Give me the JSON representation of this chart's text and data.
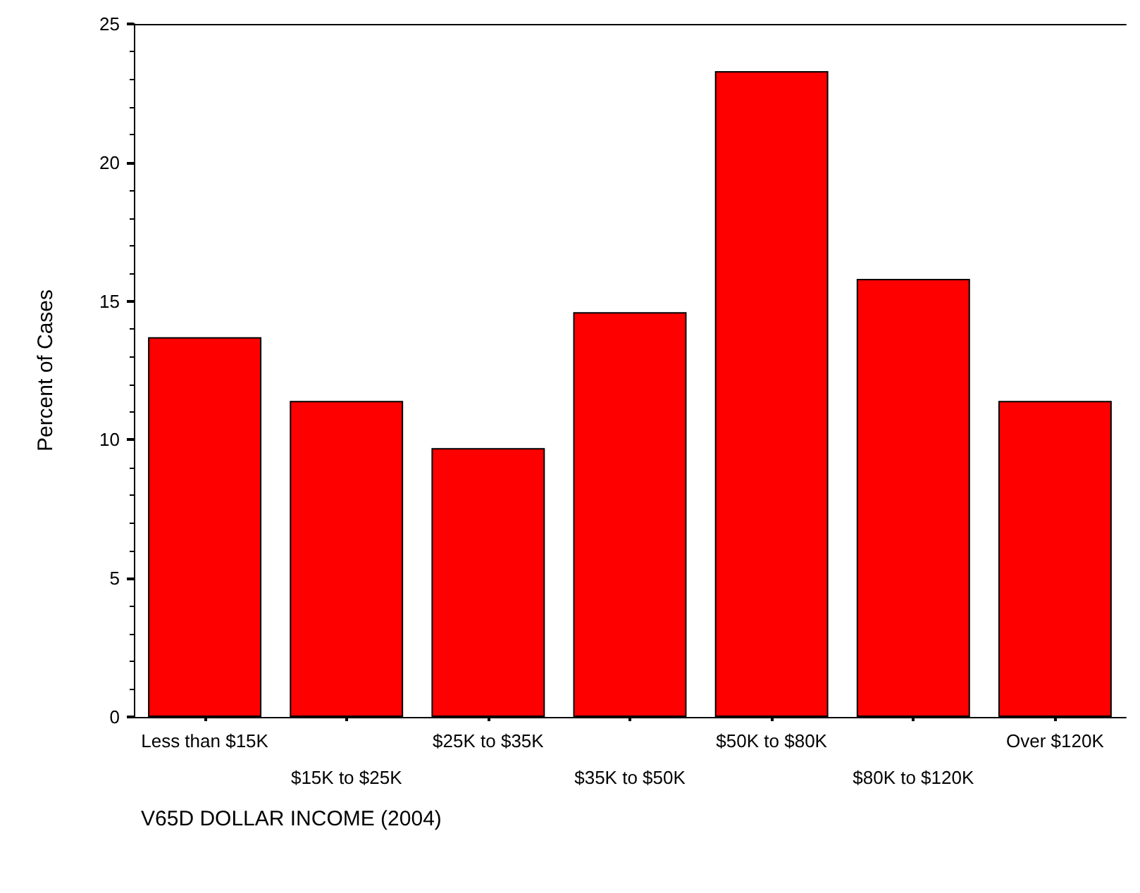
{
  "chart_data": {
    "type": "bar",
    "xlabel": "V65D DOLLAR INCOME (2004)",
    "ylabel": "Percent of Cases",
    "categories": [
      "Less than $15K",
      "$15K to $25K",
      "$25K to $35K",
      "$35K to $50K",
      "$50K to $80K",
      "$80K to $120K",
      "Over $120K"
    ],
    "values": [
      13.7,
      11.4,
      9.7,
      14.6,
      23.3,
      15.8,
      11.4
    ],
    "color": "#ff0000",
    "ylim": [
      0,
      25
    ],
    "yticks": [
      0,
      5,
      10,
      15,
      20,
      25
    ]
  }
}
